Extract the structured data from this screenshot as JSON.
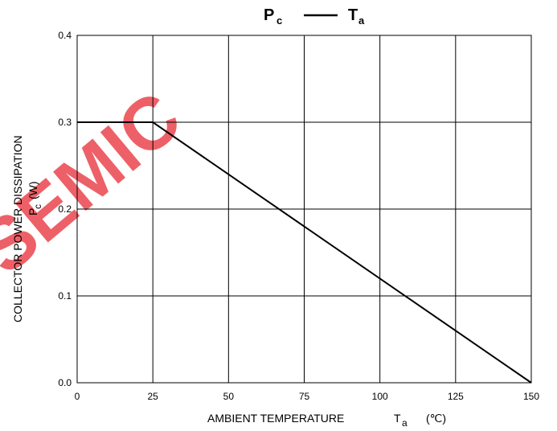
{
  "chart_data": {
    "type": "line",
    "title": {
      "left_symbol": "P",
      "left_subscript": "c",
      "right_symbol": "T",
      "right_subscript": "a"
    },
    "xlabel": {
      "text": "AMBIENT TEMPERATURE",
      "symbol": "T",
      "subscript": "a",
      "unit": "(℃)"
    },
    "ylabel": {
      "line1": "COLLECTOR POWER DISSIPATION",
      "symbol": "P",
      "subscript": "c",
      "unit": "(W)"
    },
    "xlim": [
      0,
      150
    ],
    "ylim": [
      0,
      0.4
    ],
    "x_ticks": [
      0,
      25,
      50,
      75,
      100,
      125,
      150
    ],
    "x_tick_labels": [
      "0",
      "25",
      "50",
      "75",
      "100",
      "125",
      "150"
    ],
    "y_ticks": [
      0,
      0.1,
      0.2,
      0.3,
      0.4
    ],
    "y_tick_labels": [
      "0.0",
      "0.1",
      "0.2",
      "0.3",
      "0.4"
    ],
    "grid": true,
    "series": [
      {
        "x": [
          0,
          25,
          150
        ],
        "y": [
          0.3,
          0.3,
          0
        ]
      }
    ],
    "colors": {
      "line": "#000000",
      "grid": "#000000",
      "watermark": "#e8303a"
    },
    "watermark_text": "SEMIC"
  }
}
